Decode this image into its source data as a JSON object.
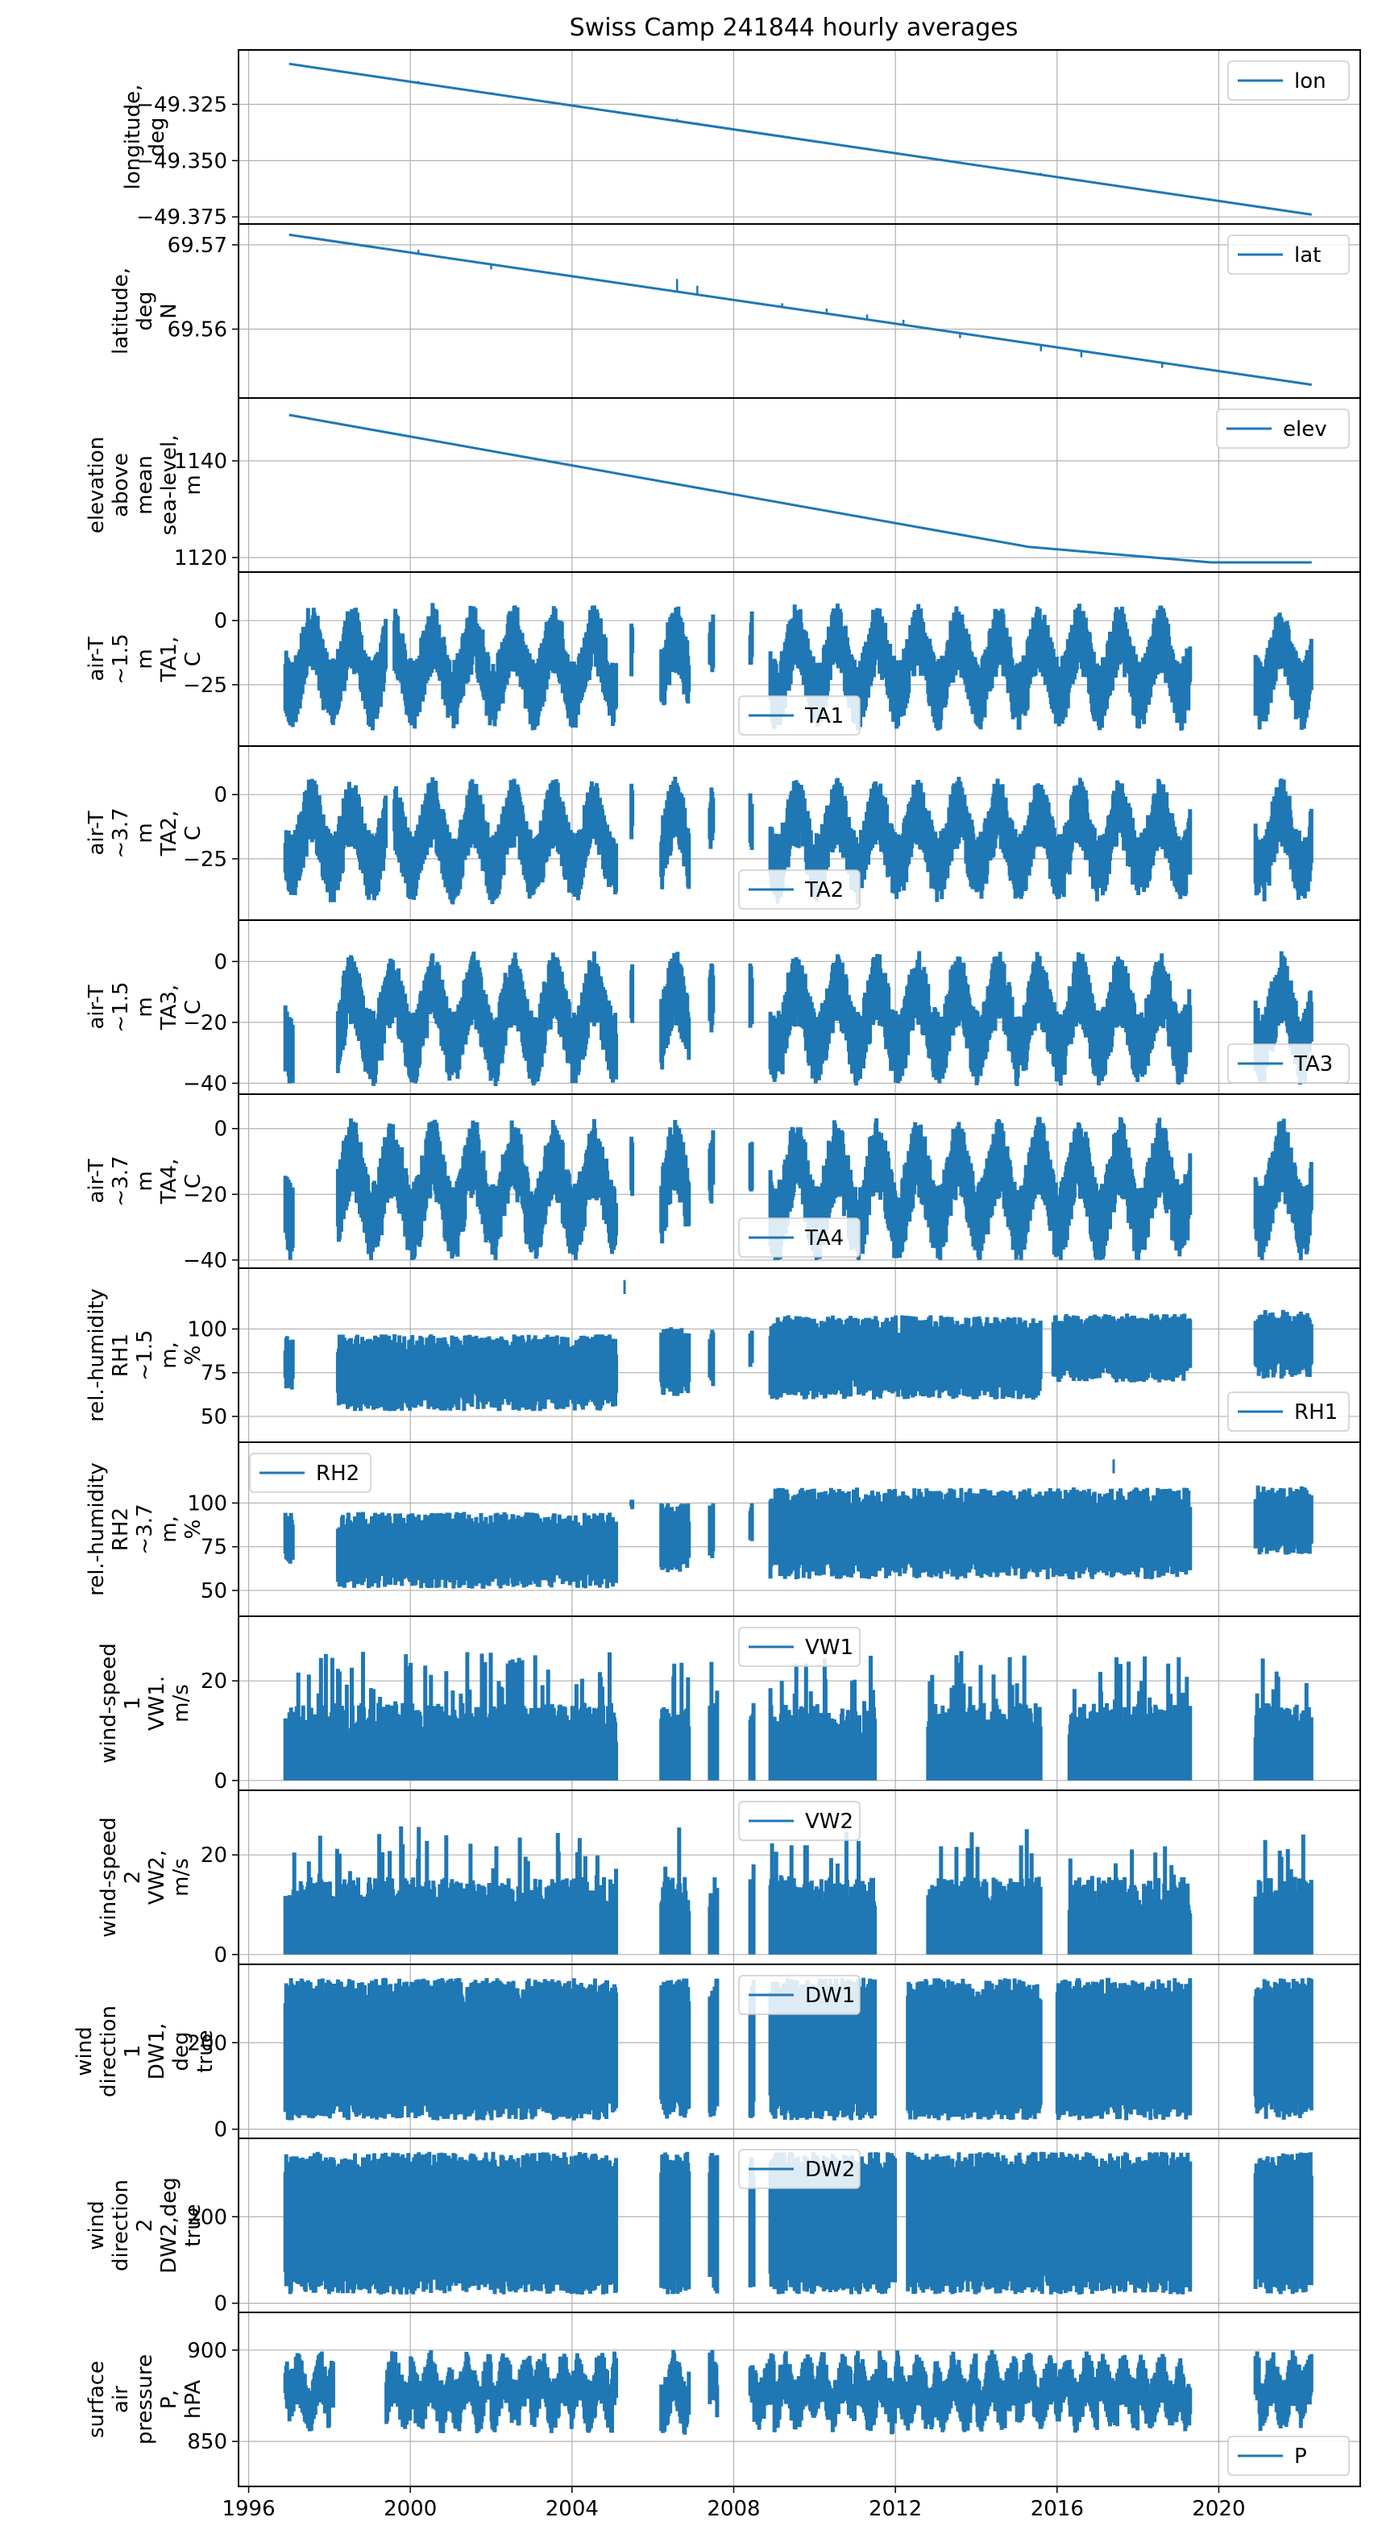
{
  "title": "Swiss Camp 241844 hourly averages",
  "x_tick_labels": [
    "1996",
    "2000",
    "2004",
    "2008",
    "2012",
    "2016",
    "2020"
  ],
  "x_ticks": [
    1996,
    2000,
    2004,
    2008,
    2012,
    2016,
    2020
  ],
  "xlim": [
    1995.75,
    2023.5
  ],
  "series_color": "#1f77b4",
  "grid_color": "#b0b0b0",
  "chart_data": [
    {
      "id": "lon",
      "type": "line",
      "ylabel": [
        "longitude,",
        "deg"
      ],
      "legend": "lon",
      "legend_loc": "upper-right",
      "ylim": [
        -49.376,
        -49.303
      ],
      "yticks": [
        -49.325,
        -49.35,
        -49.375
      ],
      "ytick_labels": [
        "−49.325",
        "−49.350",
        "−49.375"
      ],
      "style": "line",
      "anchors": [
        [
          1997.0,
          -49.307
        ],
        [
          2022.3,
          -49.374
        ]
      ],
      "spikes": [
        [
          2000.2,
          0.8
        ],
        [
          2002.0,
          0.6
        ],
        [
          2006.6,
          1.0
        ],
        [
          2007.1,
          0.6
        ],
        [
          2009.2,
          0.6
        ],
        [
          2010.3,
          0.6
        ],
        [
          2011.3,
          0.6
        ],
        [
          2013.6,
          0.6
        ],
        [
          2015.6,
          0.8
        ],
        [
          2016.6,
          0.6
        ],
        [
          2018.6,
          0.6
        ],
        [
          2021.1,
          0.6
        ]
      ],
      "spike_scale": 0.001
    },
    {
      "id": "lat",
      "type": "line",
      "ylabel": [
        "latitude,",
        "deg",
        "N"
      ],
      "legend": "lat",
      "legend_loc": "upper-right",
      "ylim": [
        69.5524,
        69.5719
      ],
      "yticks": [
        69.57,
        69.56
      ],
      "ytick_labels": [
        "69.57",
        "69.56"
      ],
      "style": "line",
      "anchors": [
        [
          1997.0,
          69.5712
        ],
        [
          2022.3,
          69.5534
        ]
      ],
      "spikes": [
        [
          2000.2,
          0.3
        ],
        [
          2002.0,
          -0.4
        ],
        [
          2006.6,
          1.0
        ],
        [
          2007.1,
          0.7
        ],
        [
          2009.2,
          0.3
        ],
        [
          2010.3,
          0.4
        ],
        [
          2011.3,
          0.4
        ],
        [
          2012.2,
          0.4
        ],
        [
          2013.6,
          -0.4
        ],
        [
          2015.6,
          -0.5
        ],
        [
          2016.6,
          -0.5
        ],
        [
          2018.6,
          -0.4
        ]
      ],
      "spike_scale": 0.0015
    },
    {
      "id": "elev",
      "type": "line",
      "ylabel": [
        "elevation",
        "above",
        "mean",
        "sea-level,",
        "m"
      ],
      "legend": "elev",
      "legend_loc": "upper-right",
      "ylim": [
        1118,
        1152
      ],
      "yticks": [
        1140,
        1120
      ],
      "ytick_labels": [
        "1140",
        "1120"
      ],
      "style": "line",
      "anchors": [
        [
          1997.0,
          1149.5
        ],
        [
          2015.3,
          1122.2
        ],
        [
          2019.8,
          1119.0
        ],
        [
          2022.3,
          1119.0
        ]
      ],
      "spikes": [],
      "spike_scale": 0
    },
    {
      "id": "TA1",
      "type": "line",
      "ylabel": [
        "air-T",
        "~1.5",
        "m",
        "TA1,",
        "C"
      ],
      "legend": "TA1",
      "legend_loc": "lower-center",
      "ylim": [
        -47,
        17
      ],
      "yticks": [
        0,
        -25
      ],
      "ytick_labels": [
        "0",
        "−25"
      ],
      "style": "seasonal",
      "mean": -17,
      "amp": 11,
      "noise": 10,
      "clamp": [
        -44,
        13
      ],
      "periods": [
        [
          1996.9,
          1999.4
        ],
        [
          1999.6,
          2005.1
        ],
        [
          2005.45,
          2005.5
        ],
        [
          2006.2,
          2006.9
        ],
        [
          2007.4,
          2007.5
        ],
        [
          2008.4,
          2008.45
        ],
        [
          2008.9,
          2019.3
        ],
        [
          2020.9,
          2022.3
        ]
      ]
    },
    {
      "id": "TA2",
      "type": "line",
      "ylabel": [
        "air-T",
        "~3.7",
        "m",
        "TA2,",
        "C"
      ],
      "legend": "TA2",
      "legend_loc": "lower-center",
      "ylim": [
        -47,
        17
      ],
      "yticks": [
        0,
        -25
      ],
      "ytick_labels": [
        "0",
        "−25"
      ],
      "style": "seasonal",
      "mean": -17,
      "amp": 11,
      "noise": 10,
      "clamp": [
        -44,
        14
      ],
      "periods": [
        [
          1996.9,
          1999.4
        ],
        [
          1999.6,
          2005.1
        ],
        [
          2005.45,
          2005.5
        ],
        [
          2006.2,
          2006.9
        ],
        [
          2007.4,
          2007.5
        ],
        [
          2008.4,
          2008.45
        ],
        [
          2008.9,
          2019.3
        ],
        [
          2020.9,
          2022.3
        ]
      ]
    },
    {
      "id": "TA3",
      "type": "line",
      "ylabel": [
        "air-T",
        "~1.5",
        "m",
        "TA3,",
        "C"
      ],
      "legend": "TA3",
      "legend_loc": "lower-right",
      "ylim": [
        -42,
        12
      ],
      "yticks": [
        0,
        -20,
        -40
      ],
      "ytick_labels": [
        "0",
        "−20",
        "−40"
      ],
      "style": "seasonal",
      "mean": -18,
      "amp": 10,
      "noise": 9,
      "clamp": [
        -41,
        10
      ],
      "periods": [
        [
          1996.9,
          1997.1
        ],
        [
          1998.2,
          2005.1
        ],
        [
          2005.45,
          2005.5
        ],
        [
          2006.2,
          2006.9
        ],
        [
          2007.4,
          2007.5
        ],
        [
          2008.4,
          2008.45
        ],
        [
          2008.9,
          2019.3
        ],
        [
          2020.9,
          2022.3
        ]
      ]
    },
    {
      "id": "TA4",
      "type": "line",
      "ylabel": [
        "air-T",
        "~3.7",
        "m",
        "TA4,",
        "C"
      ],
      "legend": "TA4",
      "legend_loc": "lower-center",
      "ylim": [
        -41,
        9
      ],
      "yticks": [
        0,
        -20,
        -40
      ],
      "ytick_labels": [
        "0",
        "−20",
        "−40"
      ],
      "style": "seasonal",
      "mean": -18,
      "amp": 10,
      "noise": 9,
      "clamp": [
        -40,
        7
      ],
      "periods": [
        [
          1996.9,
          1997.1
        ],
        [
          1998.2,
          2005.1
        ],
        [
          2005.45,
          2005.5
        ],
        [
          2006.2,
          2006.9
        ],
        [
          2007.4,
          2007.5
        ],
        [
          2008.4,
          2008.45
        ],
        [
          2008.9,
          2019.3
        ],
        [
          2020.9,
          2022.3
        ]
      ]
    },
    {
      "id": "RH1",
      "type": "line",
      "ylabel": [
        "rel.-humidity",
        "RH1",
        "~1.5",
        "m,",
        "%"
      ],
      "legend": "RH1",
      "legend_loc": "lower-right",
      "ylim": [
        38,
        132
      ],
      "yticks": [
        100,
        75,
        50
      ],
      "ytick_labels": [
        "100",
        "75",
        "50"
      ],
      "style": "band",
      "segments": [
        [
          1996.9,
          1997.1,
          82,
          14
        ],
        [
          1998.2,
          2005.1,
          77,
          20
        ],
        [
          2006.2,
          2006.9,
          83,
          18
        ],
        [
          2007.4,
          2007.5,
          85,
          15
        ],
        [
          2008.4,
          2008.45,
          90,
          10
        ],
        [
          2008.9,
          2015.6,
          86,
          22
        ],
        [
          2015.9,
          2019.3,
          91,
          18
        ],
        [
          2020.9,
          2022.3,
          93,
          18
        ]
      ],
      "spike": [
        2005.3,
        128
      ]
    },
    {
      "id": "RH2",
      "type": "line",
      "ylabel": [
        "rel.-humidity",
        "RH2",
        "~3.7",
        "m,",
        "%"
      ],
      "legend": "RH2",
      "legend_loc": "upper-left",
      "ylim": [
        38,
        132
      ],
      "yticks": [
        100,
        75,
        50
      ],
      "ytick_labels": [
        "100",
        "75",
        "50"
      ],
      "style": "band",
      "segments": [
        [
          1996.9,
          1997.1,
          82,
          14
        ],
        [
          1998.2,
          2005.1,
          75,
          20
        ],
        [
          2005.45,
          2005.5,
          100,
          3
        ],
        [
          2006.2,
          2006.9,
          82,
          18
        ],
        [
          2007.4,
          2007.5,
          85,
          15
        ],
        [
          2008.4,
          2008.45,
          90,
          10
        ],
        [
          2008.9,
          2019.3,
          85,
          24
        ],
        [
          2020.9,
          2022.3,
          92,
          18
        ]
      ],
      "spike": [
        2017.4,
        125
      ]
    },
    {
      "id": "VW1",
      "type": "line",
      "ylabel": [
        "wind-speed",
        "1",
        "VW1.",
        "m/s"
      ],
      "legend": "VW1",
      "legend_loc": "upper-center",
      "ylim": [
        -1,
        32
      ],
      "yticks": [
        20,
        0
      ],
      "ytick_labels": [
        "20",
        "0"
      ],
      "style": "wind",
      "base": 0,
      "top": 13,
      "peak": 26,
      "periods": [
        [
          1996.9,
          2005.1
        ],
        [
          2006.2,
          2006.9
        ],
        [
          2007.4,
          2007.6
        ],
        [
          2008.4,
          2008.5
        ],
        [
          2008.9,
          2011.5
        ],
        [
          2012.8,
          2015.6
        ],
        [
          2016.3,
          2019.3
        ],
        [
          2020.9,
          2022.3
        ]
      ]
    },
    {
      "id": "VW2",
      "type": "line",
      "ylabel": [
        "wind-speed",
        "2",
        "VW2,",
        "m/s"
      ],
      "legend": "VW2",
      "legend_loc": "upper-center",
      "ylim": [
        -1,
        32
      ],
      "yticks": [
        20,
        0
      ],
      "ytick_labels": [
        "20",
        "0"
      ],
      "style": "wind",
      "base": 0,
      "top": 13,
      "peak": 26,
      "periods": [
        [
          1996.9,
          2005.1
        ],
        [
          2006.2,
          2006.9
        ],
        [
          2007.4,
          2007.6
        ],
        [
          2008.4,
          2008.5
        ],
        [
          2008.9,
          2011.5
        ],
        [
          2012.8,
          2015.6
        ],
        [
          2016.3,
          2019.3
        ],
        [
          2020.9,
          2022.3
        ]
      ]
    },
    {
      "id": "DW1",
      "type": "line",
      "ylabel": [
        "wind",
        "direction",
        "1",
        "DW1,",
        "deg",
        "true"
      ],
      "legend": "DW1",
      "legend_loc": "upper-center",
      "ylim": [
        -10,
        370
      ],
      "yticks": [
        200,
        0
      ],
      "ytick_labels": [
        "200",
        "0"
      ],
      "style": "dir",
      "base": 20,
      "top": 350,
      "periods": [
        [
          1996.9,
          2005.1
        ],
        [
          2006.2,
          2006.9
        ],
        [
          2007.4,
          2007.6
        ],
        [
          2008.4,
          2008.5
        ],
        [
          2008.9,
          2011.5
        ],
        [
          2012.3,
          2015.6
        ],
        [
          2016.0,
          2019.3
        ],
        [
          2020.9,
          2022.3
        ]
      ]
    },
    {
      "id": "DW2",
      "type": "line",
      "ylabel": [
        "wind",
        "direction",
        "2",
        "DW2,deg",
        "true"
      ],
      "legend": "DW2",
      "legend_loc": "upper-center",
      "ylim": [
        -10,
        370
      ],
      "yticks": [
        200,
        0
      ],
      "ytick_labels": [
        "200",
        "0"
      ],
      "style": "dir",
      "base": 20,
      "top": 350,
      "periods": [
        [
          1996.9,
          2005.1
        ],
        [
          2006.2,
          2006.9
        ],
        [
          2007.4,
          2007.6
        ],
        [
          2008.4,
          2008.5
        ],
        [
          2008.9,
          2012.0
        ],
        [
          2012.3,
          2019.3
        ],
        [
          2020.9,
          2022.3
        ]
      ]
    },
    {
      "id": "P",
      "type": "line",
      "ylabel": [
        "surface",
        "air",
        "pressure",
        "P,",
        "hPA"
      ],
      "legend": "P",
      "legend_loc": "lower-right",
      "ylim": [
        828,
        918
      ],
      "yticks": [
        900,
        850
      ],
      "ytick_labels": [
        "900",
        "850"
      ],
      "style": "pressure",
      "mean": 877,
      "noise": 11,
      "clamp": [
        832,
        915
      ],
      "periods": [
        [
          1996.9,
          1998.1
        ],
        [
          1999.4,
          2005.1
        ],
        [
          2006.2,
          2006.9
        ],
        [
          2007.4,
          2007.6
        ],
        [
          2008.4,
          2019.3
        ],
        [
          2020.9,
          2022.3
        ]
      ]
    }
  ]
}
